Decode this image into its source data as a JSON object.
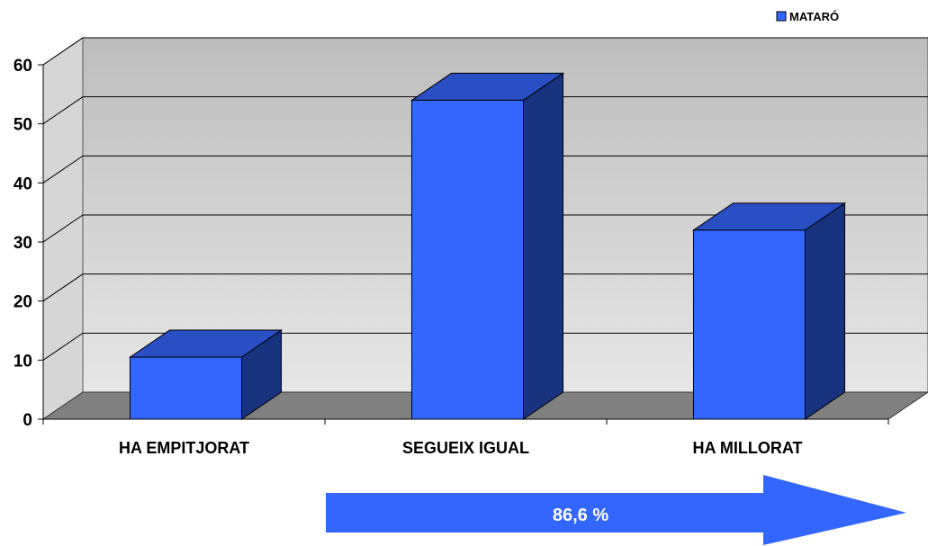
{
  "chart_data": {
    "type": "bar",
    "categories": [
      "HA EMPITJORAT",
      "SEGUEIX IGUAL",
      "HA MILLORAT"
    ],
    "series": [
      {
        "name": "MATARÓ",
        "values": [
          10.5,
          54,
          32
        ]
      }
    ],
    "ylim": [
      0,
      60
    ],
    "yticks": [
      "0",
      "10",
      "20",
      "30",
      "40",
      "50",
      "60"
    ],
    "grid": true,
    "legend_position": "top-right",
    "style": "3d-column",
    "bar_color": "#3366ff",
    "bar_top_color": "#2a4fc4",
    "bar_side_color": "#1a3380",
    "wall_color": "#c8c8c8",
    "floor_color": "#808080"
  },
  "annotation": {
    "text": "86,6 %",
    "color": "#3366ff"
  }
}
